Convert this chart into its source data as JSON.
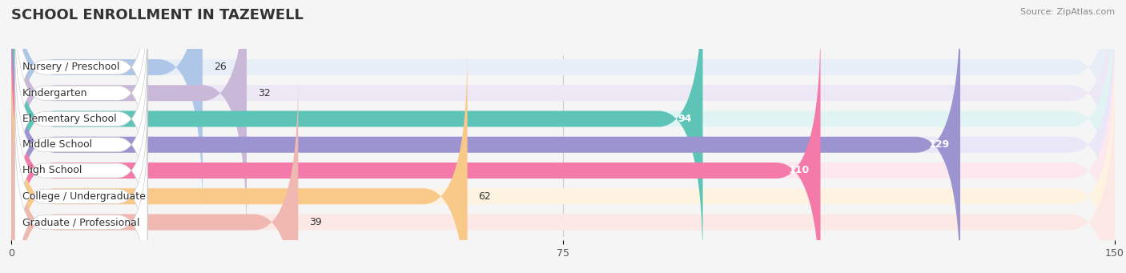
{
  "title": "SCHOOL ENROLLMENT IN TAZEWELL",
  "source": "Source: ZipAtlas.com",
  "categories": [
    "Nursery / Preschool",
    "Kindergarten",
    "Elementary School",
    "Middle School",
    "High School",
    "College / Undergraduate",
    "Graduate / Professional"
  ],
  "values": [
    26,
    32,
    94,
    129,
    110,
    62,
    39
  ],
  "bar_colors": [
    "#aec6e8",
    "#c9b8d8",
    "#5ec4b8",
    "#9b94d1",
    "#f47aaa",
    "#f9c98a",
    "#f0b8b0"
  ],
  "bg_colors": [
    "#e8eef8",
    "#ede8f5",
    "#e0f5f3",
    "#eae8f8",
    "#fde8f0",
    "#fef3e0",
    "#fce8e5"
  ],
  "xlim": [
    0,
    150
  ],
  "xticks": [
    0,
    75,
    150
  ],
  "title_fontsize": 13,
  "label_fontsize": 9,
  "value_fontsize": 9,
  "bar_height": 0.62,
  "background_color": "#f5f5f5"
}
